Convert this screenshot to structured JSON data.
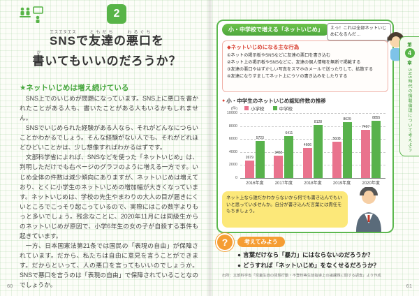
{
  "left_page": {
    "badge_number": "2",
    "title_lines": [
      [
        {
          "b": "SNS",
          "r": "エスエヌエス"
        },
        {
          "b": "で",
          "r": ""
        },
        {
          "b": "友達",
          "r": "ともだち"
        },
        {
          "b": "の",
          "r": ""
        },
        {
          "b": "悪口",
          "r": "わるぐち"
        },
        {
          "b": "を",
          "r": ""
        }
      ],
      [
        {
          "b": "書",
          "r": "か"
        },
        {
          "b": "いてもいいのだろうか？",
          "r": ""
        }
      ]
    ],
    "section_heading": "★ネットいじめは増え続けている",
    "paragraphs": [
      "SNS上でのいじめが問題になっています。SNS上に悪口を書かれたことがある人も、書いたことがある人もいるかもしれません。",
      "SNSでいじめられた経験がある人なら、それがどんなにつらいことかわかるでしょう。そんな経験がない人でも、それがどれほどひどいことかは、少し想像すればわかるはずです。",
      "文部科学省によれば、SNSなどを使った「ネットいじめ」は、判明しただけでも右ページのグラフのように増える一方です。いじめ全体の件数は減少傾向にありますが、ネットいじめは増えており、とくに小学生のネットいじめの増加幅が大きくなっています。ネットいじめは、学校の先生やまわりの大人の目が届きにくいところでこっそり起こっているので、実際にはこの数字よりもっと多いでしょう。残念なことに、2020年11月には同級生からのネットいじめが原因で、小学6年生の女の子が自殺する事件も起きています。",
      "一方、日本国憲法第21条では国民の「表現の自由」が保障されています。だから、私たちは自由に意見を言うことができます。だからといって、人の悪口を言ってもいいのでしょうか。SNSで悪口を言うのは「表現の自由」で保障されていることなのでしょうか。"
    ],
    "page_number": "60"
  },
  "right_page": {
    "panel_header": "小・中学校で増える「ネットいじめ」",
    "speech_bubble": "えっ！これは全部ネットいじめになるんだ…",
    "acts_box": {
      "title": "◆ネットいじめになる主な行為",
      "items": [
        "①ネットの掲示板やSNSなどに友達の悪口を書き込む",
        "②ネット上の掲示板やSNSなどに、友達の個人情報を無断で掲載する",
        "③友達の悪口やはずかしい写真をスマホのメールで送ったりして、拡散する",
        "④友達になりすましてネット上にウソの書き込みをしたりする"
      ]
    },
    "note_text": "ネット上なら誰だかわからないから何でも書き込んでもいいと思っていませんか。自分が書き込んだ言葉には責任をもちましょう。",
    "think_section": {
      "label": "考えてみよう",
      "items": [
        "言葉だけなら「暴力」にはならないのだろうか？",
        "どうすれば「ネットいじめ」をなくせるだろうか？"
      ]
    },
    "source": "出所：文部科学省「児童生徒の問題行動・不登校等生徒指導上の諸課題に関する調査」より作成",
    "side_tab": {
      "chapter_prefix": "第",
      "chapter_number": "4",
      "chapter_suffix": "章",
      "chapter_title": "SNS時代の情報倫理について考えよう"
    },
    "page_number": "61"
  },
  "icons": {
    "question": "?",
    "red-bullet": "●",
    "acts-bullet": "◆",
    "list-bullet": "●"
  },
  "chart_data": {
    "type": "bar",
    "title": "小・中学生のネットいじめ認知件数の推移",
    "unit": "(件)",
    "categories": [
      "2016年度",
      "2017年度",
      "2018年度",
      "2019年度",
      "2020年度"
    ],
    "series": [
      {
        "name": "小学校",
        "color": "#e9738d",
        "values": [
          2679,
          3455,
          4606,
          5608,
          7407
        ]
      },
      {
        "name": "中学校",
        "color": "#58b24c",
        "values": [
          5723,
          6411,
          8128,
          8629,
          8855
        ]
      }
    ],
    "ylim": [
      0,
      10000
    ],
    "yticks": [
      10000,
      8000,
      6000,
      4000,
      2000,
      0
    ],
    "grid": true,
    "legend_position": "top-left"
  }
}
